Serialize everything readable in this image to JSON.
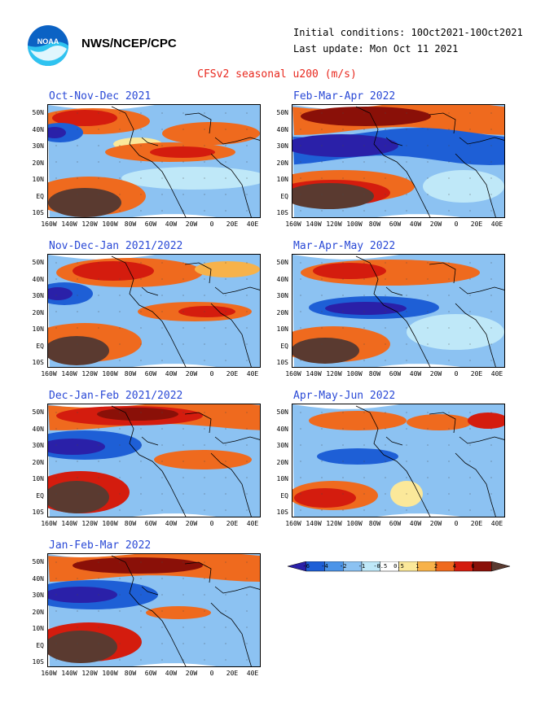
{
  "header": {
    "agency": "NWS/NCEP/CPC",
    "initial_conditions": "Initial conditions: 10Oct2021-10Oct2021",
    "last_update": "Last update: Mon Oct 11 2021",
    "title": "CFSv2 seasonal u200 (m/s)"
  },
  "axes": {
    "lat_labels": [
      "50N",
      "40N",
      "30N",
      "20N",
      "10N",
      "EQ",
      "10S"
    ],
    "lon_labels": [
      "160W",
      "140W",
      "120W",
      "100W",
      "80W",
      "60W",
      "40W",
      "20W",
      "0",
      "20E",
      "40E"
    ]
  },
  "panels": [
    {
      "title": "Oct-Nov-Dec 2021"
    },
    {
      "title": "Feb-Mar-Apr 2022"
    },
    {
      "title": "Nov-Dec-Jan 2021/2022"
    },
    {
      "title": "Mar-Apr-May 2022"
    },
    {
      "title": "Dec-Jan-Feb 2021/2022"
    },
    {
      "title": "Apr-May-Jun 2022"
    },
    {
      "title": "Jan-Feb-Mar 2022"
    }
  ],
  "colorbar": {
    "labels": [
      "-6",
      "-4",
      "-2",
      "-1",
      "-0.5",
      "0.5",
      "1",
      "2",
      "4",
      "6"
    ],
    "colors": [
      "#2a20a8",
      "#1e5fd6",
      "#4c94e8",
      "#8cc2f2",
      "#bfe8f8",
      "#ffffff",
      "#fbe89a",
      "#f7b24a",
      "#ef6a1e",
      "#d41c0e",
      "#8a1008",
      "#5a3a30"
    ]
  },
  "chart_data": {
    "type": "heatmap",
    "variable": "u200",
    "units": "m/s",
    "title": "CFSv2 seasonal u200 (m/s)",
    "lat_range": [
      "10S",
      "50N"
    ],
    "lon_range": [
      "160W",
      "40E"
    ]
  }
}
